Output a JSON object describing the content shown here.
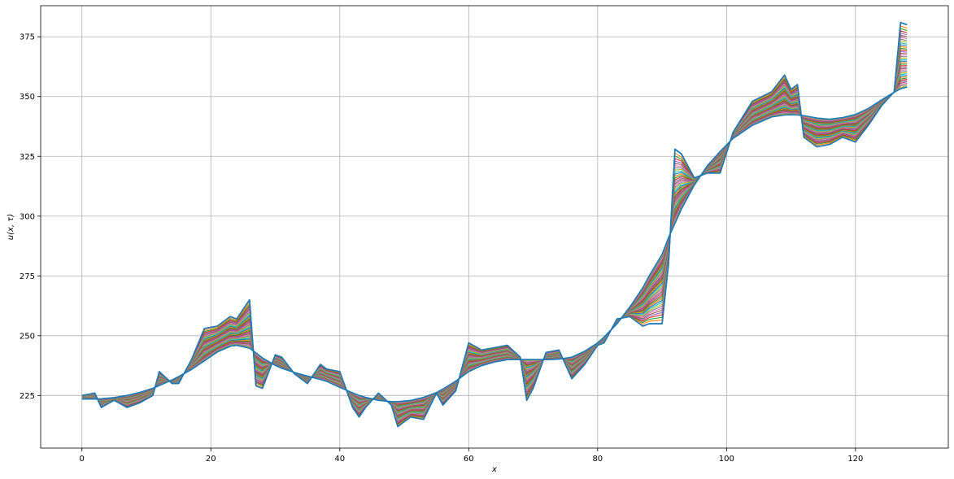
{
  "chart_data": {
    "type": "line",
    "title": "",
    "xlabel": "x",
    "ylabel": "u(x, τ)",
    "xlim": [
      -6.4,
      134.4
    ],
    "ylim": [
      203.0,
      388.0
    ],
    "xticks": [
      0,
      20,
      40,
      60,
      80,
      100,
      120
    ],
    "yticks": [
      225,
      250,
      275,
      300,
      325,
      350,
      375
    ],
    "grid": true,
    "x_points": [
      0,
      2,
      3,
      5,
      7,
      9,
      11,
      12,
      14,
      15,
      17,
      19,
      21,
      23,
      24,
      26,
      27,
      28,
      30,
      31,
      33,
      34,
      35,
      37,
      38,
      40,
      42,
      43,
      44,
      46,
      48,
      49,
      51,
      53,
      55,
      56,
      58,
      60,
      62,
      64,
      66,
      68,
      69,
      70,
      72,
      74,
      76,
      78,
      80,
      81,
      83,
      85,
      87,
      88,
      90,
      91,
      92,
      93,
      95,
      97,
      99,
      101,
      104,
      107,
      109,
      110,
      111,
      112,
      114,
      116,
      118,
      120,
      122,
      124,
      126,
      127,
      128
    ],
    "initial_profile": [
      225,
      226,
      220,
      223,
      220,
      222,
      225,
      235,
      230,
      230,
      240,
      253,
      254,
      258,
      257,
      265,
      229,
      228,
      242,
      241,
      234,
      232,
      230,
      238,
      236,
      235,
      220,
      216,
      220,
      226,
      221,
      212,
      216,
      215,
      226,
      221,
      227,
      247,
      244,
      245,
      246,
      241,
      223,
      228,
      243,
      244,
      232,
      238,
      246,
      247,
      257,
      258,
      254,
      255,
      255,
      280,
      328,
      326,
      316,
      318,
      318,
      335,
      348,
      352,
      359,
      353,
      355,
      333,
      329,
      330,
      333,
      331,
      338,
      346,
      352,
      381,
      380
    ],
    "final_profile": [
      223.5,
      223.5,
      223.6,
      224.1,
      225.0,
      226.3,
      228.0,
      229.2,
      231.5,
      232.9,
      235.9,
      239.5,
      243.2,
      245.6,
      246.0,
      244.8,
      242.8,
      240.7,
      237.6,
      236.4,
      234.6,
      233.8,
      233.1,
      231.7,
      230.9,
      228.4,
      226.1,
      225.0,
      224.2,
      223.0,
      222.4,
      222.4,
      222.9,
      224.2,
      226.2,
      227.7,
      231.0,
      235.0,
      237.5,
      239.0,
      240.0,
      240.0,
      240.0,
      240.0,
      240.0,
      240.2,
      241.0,
      243.5,
      247.0,
      249.4,
      255.0,
      262.0,
      270.0,
      275.0,
      284.0,
      291.0,
      297.0,
      303.0,
      313.0,
      321.0,
      327.0,
      332.5,
      338.0,
      341.5,
      342.3,
      342.4,
      342.3,
      342.0,
      341.0,
      340.5,
      341.2,
      342.5,
      345.0,
      348.5,
      351.8,
      353.3,
      354.0
    ],
    "num_series": 40,
    "colors": [
      "#1f77b4",
      "#ff7f0e",
      "#2ca02c",
      "#d62728",
      "#9467bd",
      "#8c564b",
      "#e377c2",
      "#7f7f7f",
      "#bcbd22",
      "#17becf"
    ]
  }
}
